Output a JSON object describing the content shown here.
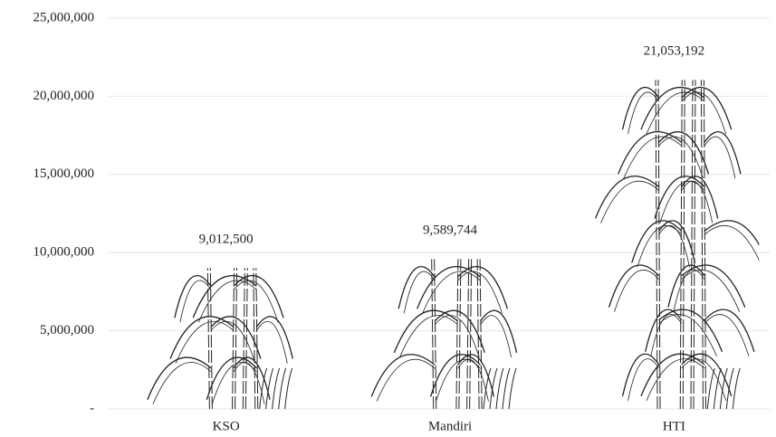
{
  "chart_data": {
    "type": "pictobar",
    "categories": [
      "KSO",
      "Mandiri",
      "HTI"
    ],
    "values": [
      9012500,
      9589744,
      21053192
    ],
    "value_labels": [
      "9,012,500",
      "9,589,744",
      "21,053,192"
    ],
    "color": "#222222",
    "ylim": [
      0,
      25000000
    ],
    "yticks": [
      {
        "value": 0,
        "label": "-"
      },
      {
        "value": 5000000,
        "label": "5,000,000"
      },
      {
        "value": 10000000,
        "label": "10,000,000"
      },
      {
        "value": 15000000,
        "label": "15,000,000"
      },
      {
        "value": 20000000,
        "label": "20,000,000"
      },
      {
        "value": 25000000,
        "label": "25,000,000"
      }
    ],
    "grid": true
  }
}
